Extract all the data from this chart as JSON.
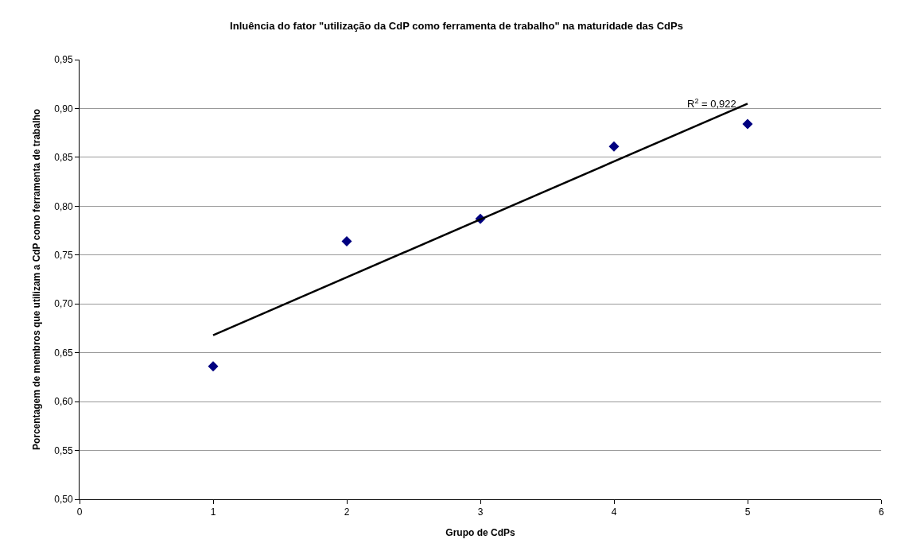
{
  "chart_data": {
    "type": "scatter",
    "title": "Inluência do fator \"utilização da CdP como ferramenta de trabalho\" na maturidade das CdPs",
    "xlabel": "Grupo de CdPs",
    "ylabel": "Porcentagem de membros que utilizam a CdP como ferramenta de trabalho",
    "series": [
      {
        "color": "#000080",
        "marker": "diamond",
        "x": [
          1,
          2,
          3,
          4,
          5
        ],
        "values": [
          0.636,
          0.764,
          0.787,
          0.861,
          0.884
        ]
      },
      {
        "type": "line",
        "color": "#000000",
        "marker": "none",
        "line_style": "solid",
        "x": [
          1,
          5
        ],
        "values": [
          0.668,
          0.905
        ]
      }
    ],
    "annotations": [
      {
        "text": "R$^{2}$ = 0,922",
        "x": 5,
        "y": 0.905
      }
    ],
    "xlim": [
      0,
      6
    ],
    "xticks": [
      0,
      1,
      2,
      3,
      4,
      5,
      6
    ],
    "ylim": [
      0.5,
      0.95
    ],
    "yticks": [
      {
        "value": 0.5,
        "label": "0,50"
      },
      {
        "value": 0.55,
        "label": "0,55"
      },
      {
        "value": 0.6,
        "label": "0,60"
      },
      {
        "value": 0.65,
        "label": "0,65"
      },
      {
        "value": 0.7,
        "label": "0,70"
      },
      {
        "value": 0.75,
        "label": "0,75"
      },
      {
        "value": 0.8,
        "label": "0,80"
      },
      {
        "value": 0.85,
        "label": "0,85"
      },
      {
        "value": 0.9,
        "label": "0,90"
      },
      {
        "value": 0.95,
        "label": "0,95"
      }
    ],
    "grid": "y"
  }
}
